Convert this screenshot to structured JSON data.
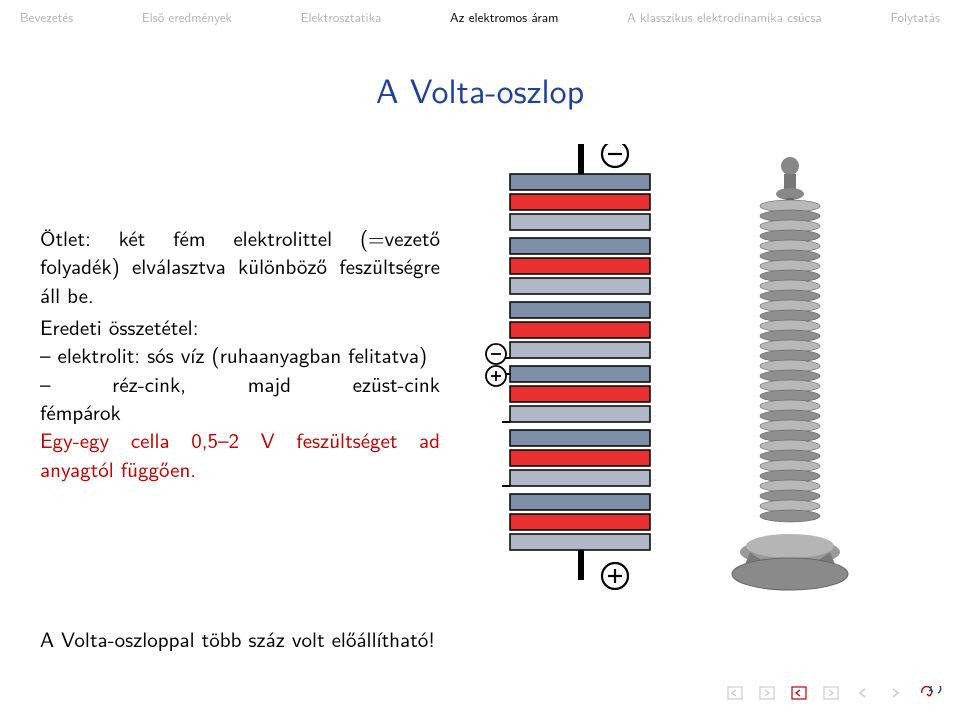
{
  "nav": {
    "items": [
      {
        "label": "Bevezetés",
        "active": false
      },
      {
        "label": "Első eredmények",
        "active": false
      },
      {
        "label": "Elektrosztatika",
        "active": false
      },
      {
        "label": "Az elektromos áram",
        "active": true
      },
      {
        "label": "A klasszikus elektrodinamika csúcsa",
        "active": false
      },
      {
        "label": "Folytatás",
        "active": false
      }
    ]
  },
  "title": "A Volta-oszlop",
  "body": {
    "p1": "Ötlet: két fém elektrolittel (=vezető folyadék) elválasztva különböző feszültségre áll be.",
    "p2a": "Eredeti összetétel:",
    "p2b": "– elektrolit: sós víz (ruhaanyag­ban felitatva)",
    "p2c_left": "– réz-cink, majd ezüst-cink",
    "p2d": "fémpárok",
    "voltage": "Egy-egy cella 0,5–2 V feszültséget ad anyagtól függően.",
    "footer": "A Volta-oszloppal több száz volt előállítható!"
  },
  "diagram": {
    "type": "voltaic-pile-schematic",
    "layers_per_cell": 3,
    "cells": 6,
    "colors": {
      "electrode_a": "#808fa8",
      "separator": "#e83030",
      "electrode_b": "#b0b8c8",
      "outline": "#000000",
      "rod": "#000000",
      "background": "#ffffff"
    },
    "labels": {
      "top_terminal": "−",
      "mid_minus": "−",
      "mid_plus": "+",
      "bottom_terminal": "+"
    },
    "layer_width": 140,
    "layer_height": 16,
    "gap": 4,
    "rod_width": 6
  },
  "photo": {
    "description": "photograph of original voltaic pile on ornate metal base",
    "colors": {
      "metal": "#9a9a9a",
      "dark": "#5a5a5a",
      "bg": "#ffffff"
    }
  },
  "nav_controls": {
    "icons": [
      "frame-back-icon",
      "frame-fwd-icon",
      "slide-back-icon",
      "slide-fwd-icon",
      "nav-back-icon",
      "nav-fwd-icon",
      "loop-icon"
    ],
    "colors": {
      "gray": "#cccccc",
      "red": "#c00000",
      "blue": "#2040a0"
    }
  }
}
